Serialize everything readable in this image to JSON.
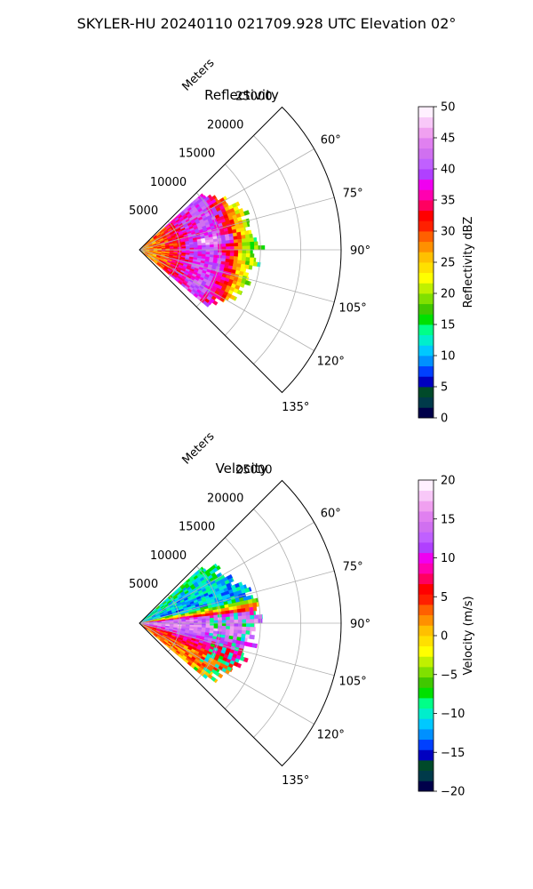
{
  "page": {
    "suptitle": "SKYLER-HU  20240110  021709.928 UTC Elevation 02°"
  },
  "chart_data": [
    {
      "type": "polar-sector",
      "title": "Reflectivity",
      "range_axis_label": "Meters",
      "range_ticks": [
        5000,
        10000,
        15000,
        20000,
        25000
      ],
      "range_tick_labels": [
        "5000",
        "10000",
        "15000",
        "20000",
        "25000"
      ],
      "range_max": 25000,
      "azimuth_range": [
        45,
        135
      ],
      "azimuth_ticks": [
        60,
        75,
        90,
        105,
        120,
        135
      ],
      "azimuth_tick_labels": [
        "60°",
        "75°",
        "90°",
        "105°",
        "120°",
        "135°"
      ],
      "grid": true,
      "data_extent": {
        "az_min": 48,
        "az_max": 130,
        "range_max": 15000
      },
      "colorbar": {
        "label": "Reflectivity dBZ",
        "min": 0,
        "max": 50,
        "ticks": [
          0,
          5,
          10,
          15,
          20,
          25,
          30,
          35,
          40,
          45,
          50
        ],
        "tick_labels": [
          "0",
          "5",
          "10",
          "15",
          "20",
          "25",
          "30",
          "35",
          "40",
          "45",
          "50"
        ],
        "colors": [
          "#00004a",
          "#003a4a",
          "#004a2a",
          "#0000c0",
          "#0040ff",
          "#0090ff",
          "#00c8ff",
          "#00eecc",
          "#00ff88",
          "#00e000",
          "#40c800",
          "#80e000",
          "#c0f000",
          "#ffff00",
          "#ffe000",
          "#ffc000",
          "#ff9000",
          "#ff6000",
          "#ff2000",
          "#ff0000",
          "#ff0060",
          "#ff00b0",
          "#f000f0",
          "#b040ff",
          "#c060ff",
          "#d070f0",
          "#e080f0",
          "#f0a0f0",
          "#f8c8f8",
          "#fff0ff"
        ]
      },
      "field_profile": [
        [
          0,
          26
        ],
        [
          3000,
          30
        ],
        [
          6000,
          37
        ],
        [
          9000,
          41
        ],
        [
          11000,
          34
        ],
        [
          13000,
          22
        ],
        [
          15000,
          16
        ]
      ]
    },
    {
      "type": "polar-sector",
      "title": "Velocity",
      "range_axis_label": "Meters",
      "range_ticks": [
        5000,
        10000,
        15000,
        20000,
        25000
      ],
      "range_tick_labels": [
        "5000",
        "10000",
        "15000",
        "20000",
        "25000"
      ],
      "range_max": 25000,
      "azimuth_range": [
        45,
        135
      ],
      "azimuth_ticks": [
        60,
        75,
        90,
        105,
        120,
        135
      ],
      "azimuth_tick_labels": [
        "60°",
        "75°",
        "90°",
        "105°",
        "120°",
        "135°"
      ],
      "grid": true,
      "data_extent": {
        "az_min": 48,
        "az_max": 130,
        "range_max": 15000
      },
      "colorbar": {
        "label": "Velocity (m/s)",
        "min": -20,
        "max": 20,
        "ticks": [
          -20,
          -15,
          -10,
          -5,
          0,
          5,
          10,
          15,
          20
        ],
        "tick_labels": [
          "−20",
          "−15",
          "−10",
          "−5",
          "0",
          "5",
          "10",
          "15",
          "20"
        ],
        "colors": [
          "#00004a",
          "#003a4a",
          "#004a2a",
          "#0000c0",
          "#0040ff",
          "#0090ff",
          "#00c8ff",
          "#00eecc",
          "#00ff88",
          "#00e000",
          "#40c800",
          "#80e000",
          "#c0f000",
          "#ffff00",
          "#ffe000",
          "#ffc000",
          "#ff9000",
          "#ff6000",
          "#ff2000",
          "#ff0000",
          "#ff0060",
          "#ff00b0",
          "#f000f0",
          "#b040ff",
          "#c060ff",
          "#d070f0",
          "#e080f0",
          "#f0a0f0",
          "#f8c8f8",
          "#fff0ff"
        ]
      },
      "field_by_azimuth": [
        [
          50,
          -9
        ],
        [
          62,
          -11
        ],
        [
          75,
          -12
        ],
        [
          85,
          14
        ],
        [
          95,
          15
        ],
        [
          105,
          9
        ],
        [
          115,
          4
        ],
        [
          128,
          2
        ]
      ]
    }
  ]
}
